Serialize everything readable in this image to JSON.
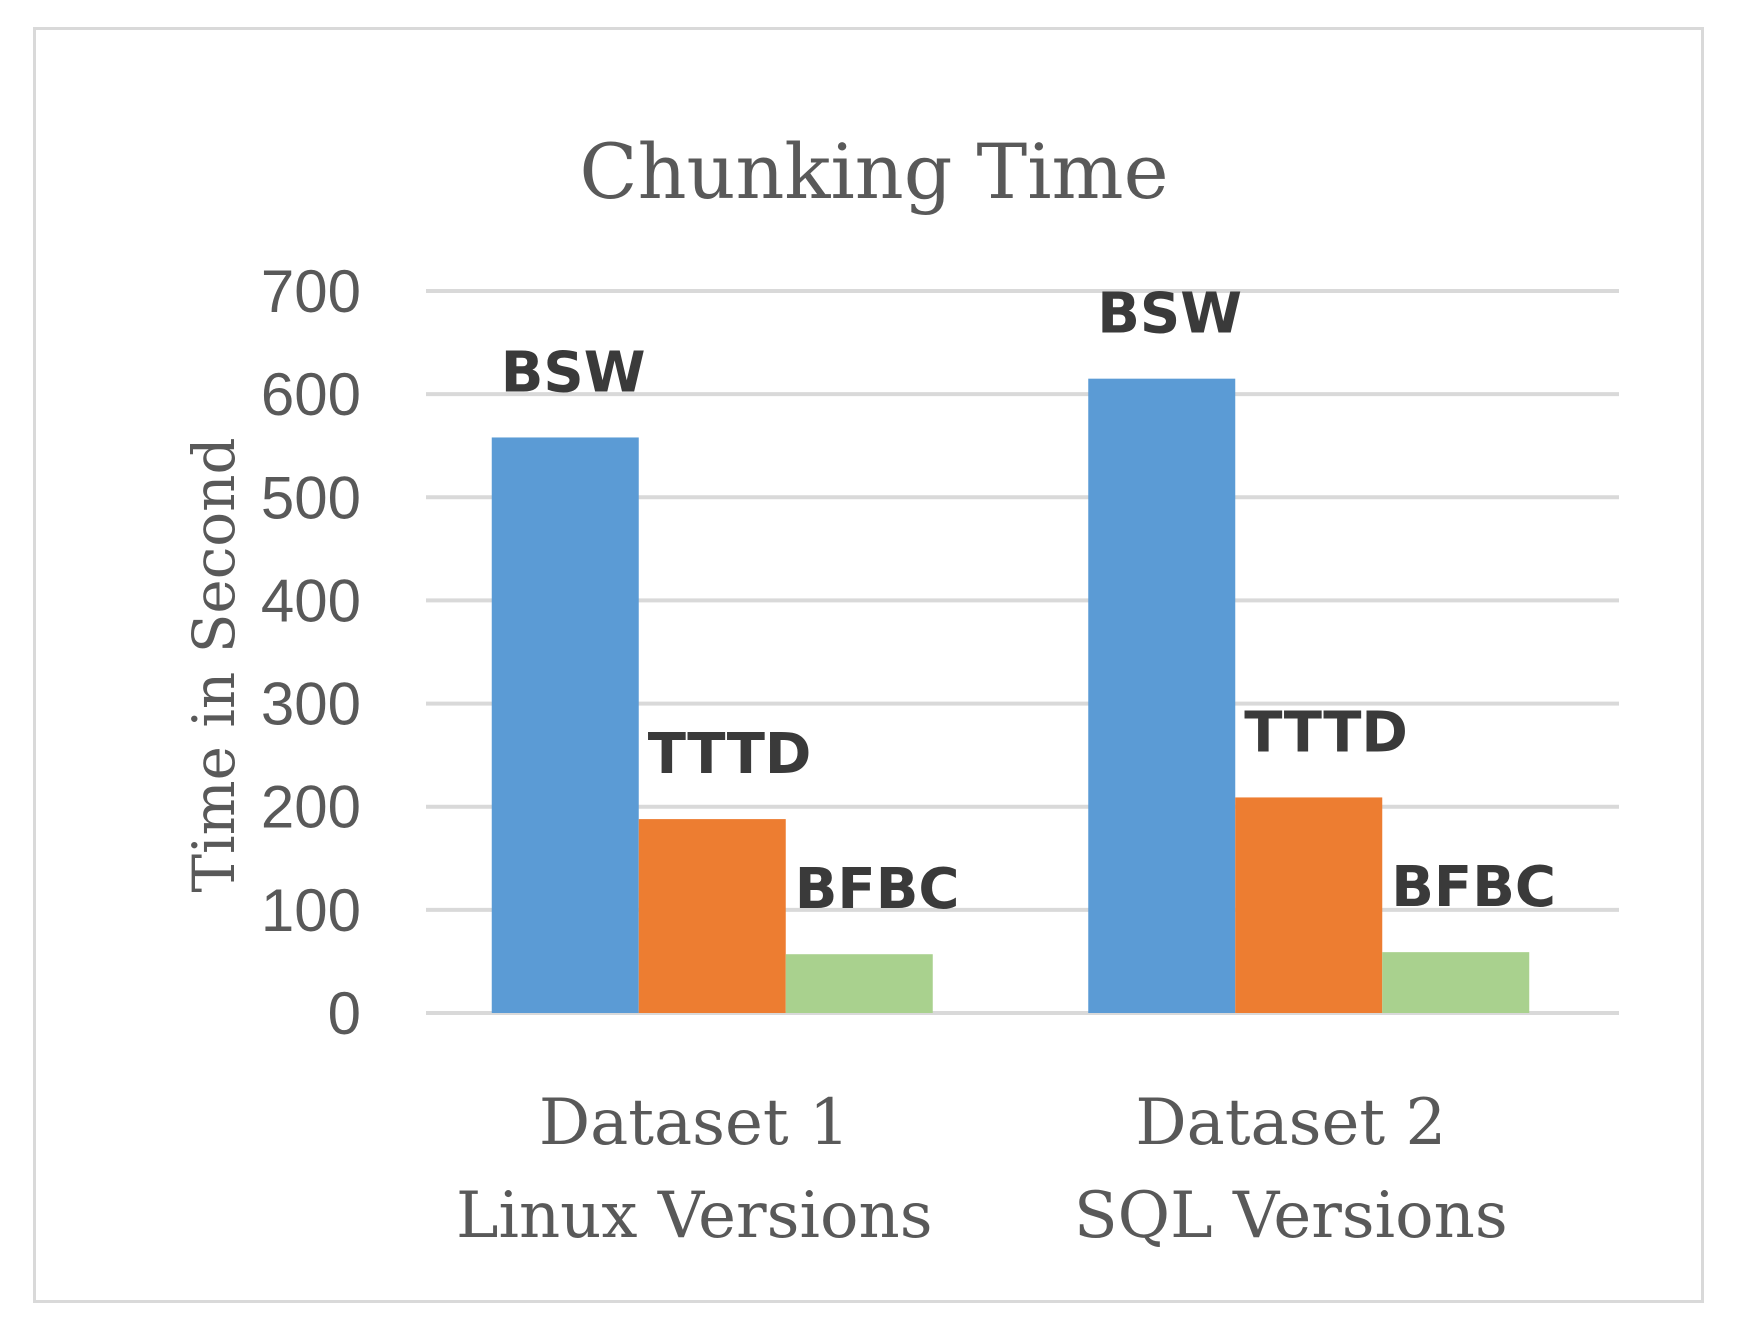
{
  "chart_data": {
    "type": "bar",
    "title": "Chunking Time",
    "ylabel": "Time in Second",
    "xlabel": "",
    "ylim": [
      0,
      700
    ],
    "yticks": [
      0,
      100,
      200,
      300,
      400,
      500,
      600,
      700
    ],
    "grid": true,
    "categories": [
      [
        "Dataset 1",
        "Linux Versions"
      ],
      [
        "Dataset 2",
        "SQL Versions"
      ]
    ],
    "series": [
      {
        "name": "BSW",
        "color": "#5b9bd5",
        "values": [
          558,
          615
        ]
      },
      {
        "name": "TTTD",
        "color": "#ed7d31",
        "values": [
          188,
          209
        ]
      },
      {
        "name": "BFBC",
        "color": "#a9d18e",
        "values": [
          57,
          59
        ]
      }
    ]
  }
}
